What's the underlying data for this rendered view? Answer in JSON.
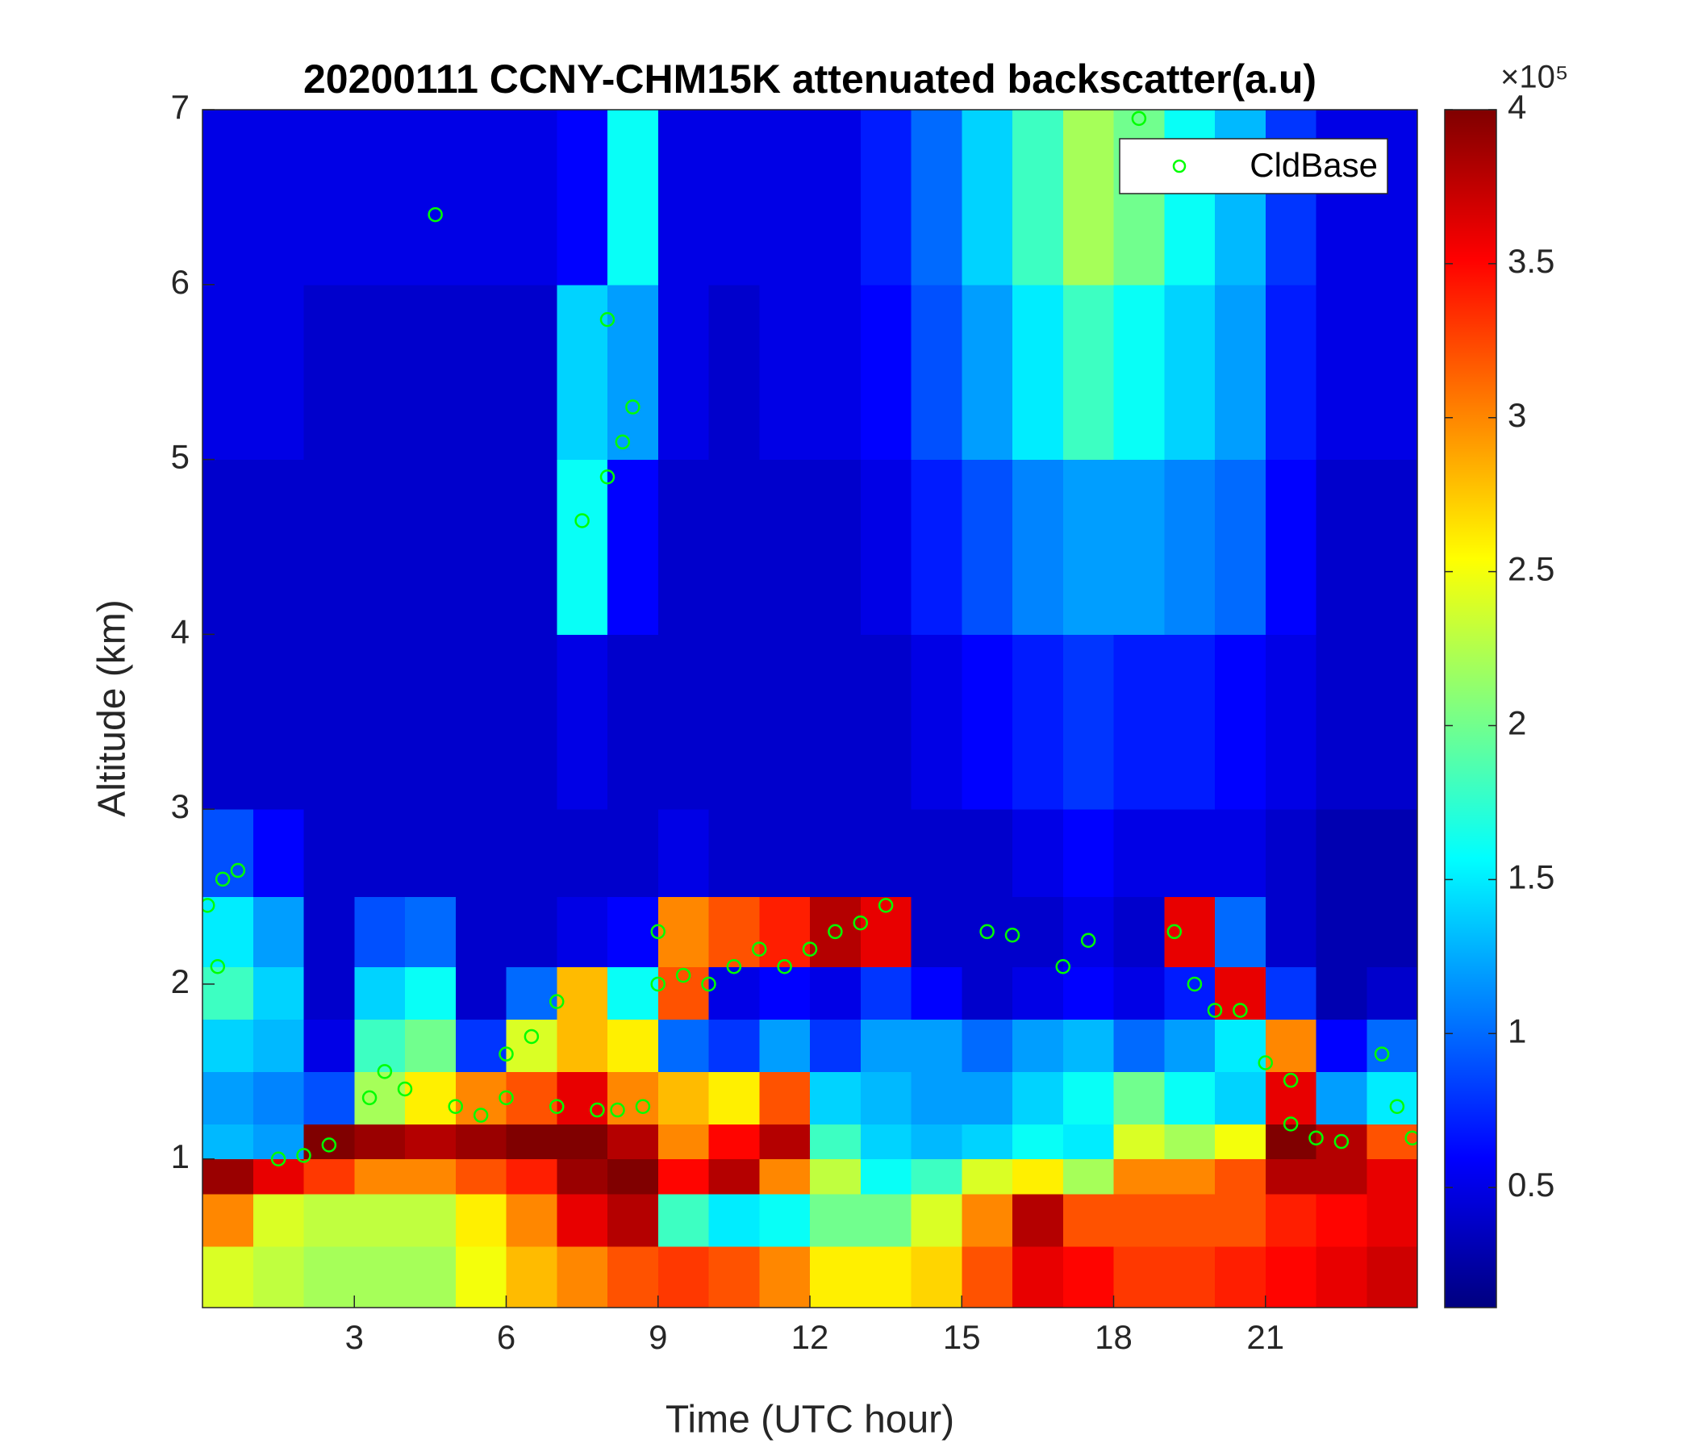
{
  "chart_data": {
    "type": "heatmap",
    "title": "20200111 CCNY-CHM15K attenuated backscatter(a.u)",
    "xlabel": "Time (UTC hour)",
    "ylabel": "Altitude (km)",
    "colormap": "jet",
    "xlim": [
      0,
      24
    ],
    "ylim": [
      0.15,
      7
    ],
    "xticks": [
      3,
      6,
      9,
      12,
      15,
      18,
      21
    ],
    "yticks": [
      1,
      2,
      3,
      4,
      5,
      6,
      7
    ],
    "clim": [
      0.11,
      4
    ],
    "colorbar_ticks": [
      0.5,
      1,
      1.5,
      2,
      2.5,
      3,
      3.5,
      4
    ],
    "colorbar_scale_label": "×10⁵",
    "x_edges": [
      0,
      1,
      2,
      3,
      4,
      5,
      6,
      7,
      8,
      9,
      10,
      11,
      12,
      13,
      14,
      15,
      16,
      17,
      18,
      19,
      20,
      21,
      22,
      23,
      24
    ],
    "y_edges": [
      0.15,
      0.5,
      0.8,
      1.0,
      1.2,
      1.5,
      1.8,
      2.1,
      2.5,
      3,
      4,
      5,
      6,
      7
    ],
    "z": [
      [
        2.4,
        2.3,
        2.2,
        2.2,
        2.2,
        2.5,
        2.8,
        3.0,
        3.2,
        3.3,
        3.2,
        3.0,
        2.6,
        2.6,
        2.7,
        3.2,
        3.6,
        3.5,
        3.3,
        3.3,
        3.4,
        3.5,
        3.6,
        3.7
      ],
      [
        3.0,
        2.4,
        2.3,
        2.3,
        2.3,
        2.6,
        3.0,
        3.6,
        3.8,
        1.8,
        1.5,
        1.6,
        2.0,
        2.0,
        2.4,
        3.0,
        3.8,
        3.2,
        3.2,
        3.2,
        3.2,
        3.4,
        3.5,
        3.6
      ],
      [
        3.9,
        3.6,
        3.3,
        3.0,
        3.0,
        3.2,
        3.4,
        3.9,
        4.0,
        3.5,
        3.8,
        3.0,
        2.3,
        1.6,
        1.8,
        2.4,
        2.6,
        2.2,
        3.0,
        3.0,
        3.2,
        3.8,
        3.8,
        3.6
      ],
      [
        1.3,
        1.2,
        4.0,
        3.9,
        3.8,
        3.9,
        4.0,
        4.0,
        3.8,
        3.0,
        3.5,
        3.8,
        1.8,
        1.4,
        1.3,
        1.4,
        1.6,
        1.5,
        2.4,
        2.2,
        2.5,
        4.0,
        3.8,
        3.2
      ],
      [
        1.2,
        1.1,
        0.9,
        2.2,
        2.6,
        3.0,
        3.2,
        3.6,
        3.0,
        2.8,
        2.6,
        3.2,
        1.4,
        1.3,
        1.2,
        1.2,
        1.4,
        1.6,
        2.0,
        1.6,
        1.4,
        3.6,
        1.2,
        1.5
      ],
      [
        1.4,
        1.3,
        0.5,
        1.8,
        2.0,
        0.8,
        2.4,
        2.8,
        2.6,
        1.0,
        0.8,
        1.2,
        0.8,
        1.2,
        1.2,
        1.0,
        1.2,
        1.3,
        1.0,
        1.2,
        1.5,
        3.0,
        0.6,
        1.0
      ],
      [
        1.8,
        1.4,
        0.4,
        1.4,
        1.6,
        0.4,
        1.0,
        2.8,
        1.6,
        3.2,
        0.5,
        0.6,
        0.5,
        0.8,
        0.6,
        0.4,
        0.5,
        0.6,
        0.5,
        0.7,
        3.6,
        0.8,
        0.3,
        0.4
      ],
      [
        1.5,
        1.2,
        0.4,
        0.9,
        1.0,
        0.4,
        0.4,
        0.5,
        0.6,
        3.0,
        3.2,
        3.4,
        3.8,
        3.6,
        0.4,
        0.4,
        0.4,
        0.5,
        0.4,
        3.6,
        1.0,
        0.4,
        0.3,
        0.3
      ],
      [
        0.9,
        0.6,
        0.4,
        0.4,
        0.4,
        0.4,
        0.4,
        0.4,
        0.4,
        0.5,
        0.4,
        0.4,
        0.4,
        0.4,
        0.4,
        0.4,
        0.5,
        0.6,
        0.5,
        0.5,
        0.5,
        0.4,
        0.3,
        0.3
      ],
      [
        0.4,
        0.4,
        0.4,
        0.4,
        0.4,
        0.4,
        0.4,
        0.5,
        0.4,
        0.4,
        0.4,
        0.4,
        0.4,
        0.4,
        0.5,
        0.6,
        0.7,
        0.8,
        0.7,
        0.7,
        0.6,
        0.5,
        0.4,
        0.4
      ],
      [
        0.4,
        0.4,
        0.4,
        0.4,
        0.4,
        0.4,
        0.4,
        1.6,
        0.6,
        0.4,
        0.4,
        0.4,
        0.4,
        0.5,
        0.7,
        0.9,
        1.1,
        1.2,
        1.2,
        1.1,
        1.0,
        0.6,
        0.4,
        0.4
      ],
      [
        0.5,
        0.5,
        0.4,
        0.4,
        0.4,
        0.4,
        0.4,
        1.4,
        1.2,
        0.5,
        0.4,
        0.5,
        0.5,
        0.6,
        0.9,
        1.2,
        1.5,
        1.8,
        1.6,
        1.4,
        1.2,
        0.7,
        0.5,
        0.5
      ],
      [
        0.5,
        0.5,
        0.5,
        0.5,
        0.5,
        0.5,
        0.5,
        0.6,
        1.6,
        0.5,
        0.5,
        0.5,
        0.5,
        0.7,
        1.0,
        1.4,
        1.8,
        2.2,
        2.0,
        1.6,
        1.3,
        0.8,
        0.5,
        0.5
      ]
    ],
    "series": [
      {
        "name": "CldBase",
        "color": "#00ff00",
        "x": [
          0.1,
          0.4,
          0.7,
          0.3,
          1.5,
          2,
          2.5,
          3.3,
          3.6,
          4,
          4.6,
          5,
          5.5,
          6,
          6,
          6.5,
          7,
          7,
          7.5,
          7.8,
          8,
          8.2,
          8.3,
          8.5,
          8,
          8.7,
          9,
          9,
          9.5,
          10,
          10.5,
          11,
          11.5,
          12,
          12.5,
          13,
          13.5,
          15.5,
          16,
          17,
          17.5,
          18.5,
          19.2,
          19.6,
          20,
          20.5,
          21,
          21.5,
          21.5,
          22,
          22.5,
          23.3,
          23.6,
          23.9
        ],
        "values": [
          2.45,
          2.6,
          2.65,
          2.1,
          1.0,
          1.02,
          1.08,
          1.35,
          1.5,
          1.4,
          6.4,
          1.3,
          1.25,
          1.35,
          1.6,
          1.7,
          1.3,
          1.9,
          4.65,
          1.28,
          4.9,
          1.28,
          5.1,
          5.3,
          5.8,
          1.3,
          2.0,
          2.3,
          2.05,
          2.0,
          2.1,
          2.2,
          2.1,
          2.2,
          2.3,
          2.35,
          2.45,
          2.3,
          2.28,
          2.1,
          2.25,
          6.95,
          2.3,
          2.0,
          1.85,
          1.85,
          1.55,
          1.45,
          1.2,
          1.12,
          1.1,
          1.6,
          1.3,
          1.12
        ]
      }
    ],
    "legend": "upper right"
  }
}
